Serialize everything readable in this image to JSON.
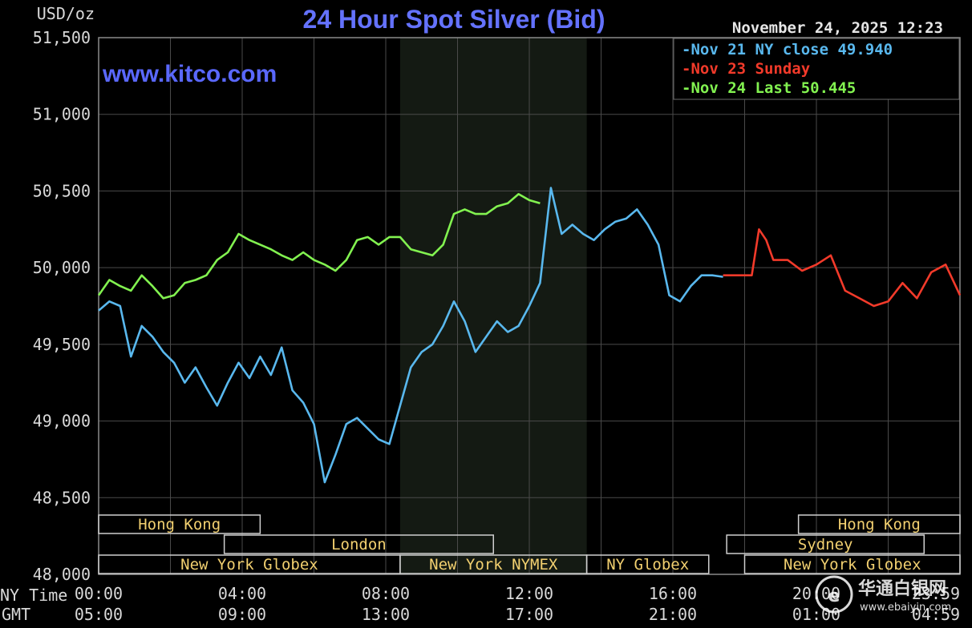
{
  "chart_data": {
    "type": "line",
    "title": "24 Hour Spot Silver (Bid)",
    "ylabel": "USD/oz",
    "ylim": [
      48.0,
      51.5
    ],
    "y_ticks": [
      "48,000",
      "48,500",
      "49,000",
      "49,500",
      "50,000",
      "50,500",
      "51,000",
      "51,500"
    ],
    "y_tick_values": [
      48.0,
      48.5,
      49.0,
      49.5,
      50.0,
      50.5,
      51.0,
      51.5
    ],
    "x_axis_label_ny": "NY Time",
    "x_axis_label_gmt": "GMT",
    "x_ticks_ny": [
      "00:00",
      "04:00",
      "08:00",
      "12:00",
      "16:00",
      "20:00",
      "23:59"
    ],
    "x_ticks_gmt": [
      "05:00",
      "09:00",
      "13:00",
      "17:00",
      "21:00",
      "01:00",
      "04:59"
    ],
    "x_tick_hours": [
      0,
      4,
      8,
      12,
      16,
      20,
      24
    ],
    "xlim": [
      0,
      24
    ],
    "grid": true,
    "legend_position": "top-right",
    "timestamp": "November 24, 2025 12:23",
    "watermark": "www.kitco.com",
    "nymex_shade_hours": [
      8.4,
      13.6
    ],
    "series": [
      {
        "name": "Nov 21 NY close 49.940",
        "color": "#59b8ee",
        "x": [
          0,
          0.3,
          0.6,
          0.9,
          1.2,
          1.5,
          1.8,
          2.1,
          2.4,
          2.7,
          3.0,
          3.3,
          3.6,
          3.9,
          4.2,
          4.5,
          4.8,
          5.1,
          5.4,
          5.7,
          6.0,
          6.3,
          6.6,
          6.9,
          7.2,
          7.5,
          7.8,
          8.1,
          8.4,
          8.7,
          9.0,
          9.3,
          9.6,
          9.9,
          10.2,
          10.5,
          10.8,
          11.1,
          11.4,
          11.7,
          12.0,
          12.3,
          12.6,
          12.9,
          13.2,
          13.5,
          13.8,
          14.1,
          14.4,
          14.7,
          15.0,
          15.3,
          15.6,
          15.9,
          16.2,
          16.5,
          16.8,
          17.1,
          17.4
        ],
        "y": [
          49.72,
          49.78,
          49.75,
          49.42,
          49.62,
          49.55,
          49.45,
          49.38,
          49.25,
          49.35,
          49.22,
          49.1,
          49.25,
          49.38,
          49.28,
          49.42,
          49.3,
          49.48,
          49.2,
          49.12,
          48.98,
          48.6,
          48.78,
          48.98,
          49.02,
          48.95,
          48.88,
          48.85,
          49.1,
          49.35,
          49.45,
          49.5,
          49.62,
          49.78,
          49.65,
          49.45,
          49.55,
          49.65,
          49.58,
          49.62,
          49.75,
          49.9,
          50.52,
          50.22,
          50.28,
          50.22,
          50.18,
          50.25,
          50.3,
          50.32,
          50.38,
          50.28,
          50.15,
          49.82,
          49.78,
          49.88,
          49.95,
          49.95,
          49.94
        ]
      },
      {
        "name": "Nov 23 Sunday",
        "color": "#f23a2a",
        "x": [
          17.4,
          17.8,
          18.2,
          18.4,
          18.6,
          18.8,
          19.2,
          19.6,
          20.0,
          20.4,
          20.8,
          21.2,
          21.6,
          22.0,
          22.4,
          22.8,
          23.2,
          23.6,
          24.0
        ],
        "y": [
          49.95,
          49.95,
          49.95,
          50.25,
          50.18,
          50.05,
          50.05,
          49.98,
          50.02,
          50.08,
          49.85,
          49.8,
          49.75,
          49.78,
          49.9,
          49.8,
          49.97,
          50.02,
          49.82
        ]
      },
      {
        "name": "Nov 24 Last 50.445",
        "color": "#82f250",
        "x": [
          0,
          0.3,
          0.6,
          0.9,
          1.2,
          1.5,
          1.8,
          2.1,
          2.4,
          2.7,
          3.0,
          3.3,
          3.6,
          3.9,
          4.2,
          4.5,
          4.8,
          5.1,
          5.4,
          5.7,
          6.0,
          6.3,
          6.6,
          6.9,
          7.2,
          7.5,
          7.8,
          8.1,
          8.4,
          8.7,
          9.0,
          9.3,
          9.6,
          9.9,
          10.2,
          10.5,
          10.8,
          11.1,
          11.4,
          11.7,
          12.0,
          12.3
        ],
        "y": [
          49.82,
          49.92,
          49.88,
          49.85,
          49.95,
          49.88,
          49.8,
          49.82,
          49.9,
          49.92,
          49.95,
          50.05,
          50.1,
          50.22,
          50.18,
          50.15,
          50.12,
          50.08,
          50.05,
          50.1,
          50.05,
          50.02,
          49.98,
          50.05,
          50.18,
          50.2,
          50.15,
          50.2,
          50.2,
          50.12,
          50.1,
          50.08,
          50.15,
          50.35,
          50.38,
          50.35,
          50.35,
          50.4,
          50.42,
          50.48,
          50.44,
          50.42
        ]
      }
    ]
  },
  "market_sessions": [
    {
      "label": "Hong Kong",
      "start": 0,
      "end": 4.5,
      "row": 0
    },
    {
      "label": "London",
      "start": 3.5,
      "end": 11.0,
      "row": 1
    },
    {
      "label": "New York Globex",
      "start": 0,
      "end": 8.4,
      "row": 2
    },
    {
      "label": "New York NYMEX",
      "start": 8.4,
      "end": 13.6,
      "row": 2
    },
    {
      "label": "NY Globex",
      "start": 13.6,
      "end": 17.0,
      "row": 2
    },
    {
      "label": "Hong Kong",
      "start": 19.5,
      "end": 24.0,
      "row": 0
    },
    {
      "label": "Sydney",
      "start": 17.5,
      "end": 23.0,
      "row": 1
    },
    {
      "label": "New York Globex",
      "start": 18.0,
      "end": 24.0,
      "row": 2
    }
  ],
  "corner_brand": {
    "title": "华通白银网",
    "url": "www.ebaiyin.com"
  }
}
